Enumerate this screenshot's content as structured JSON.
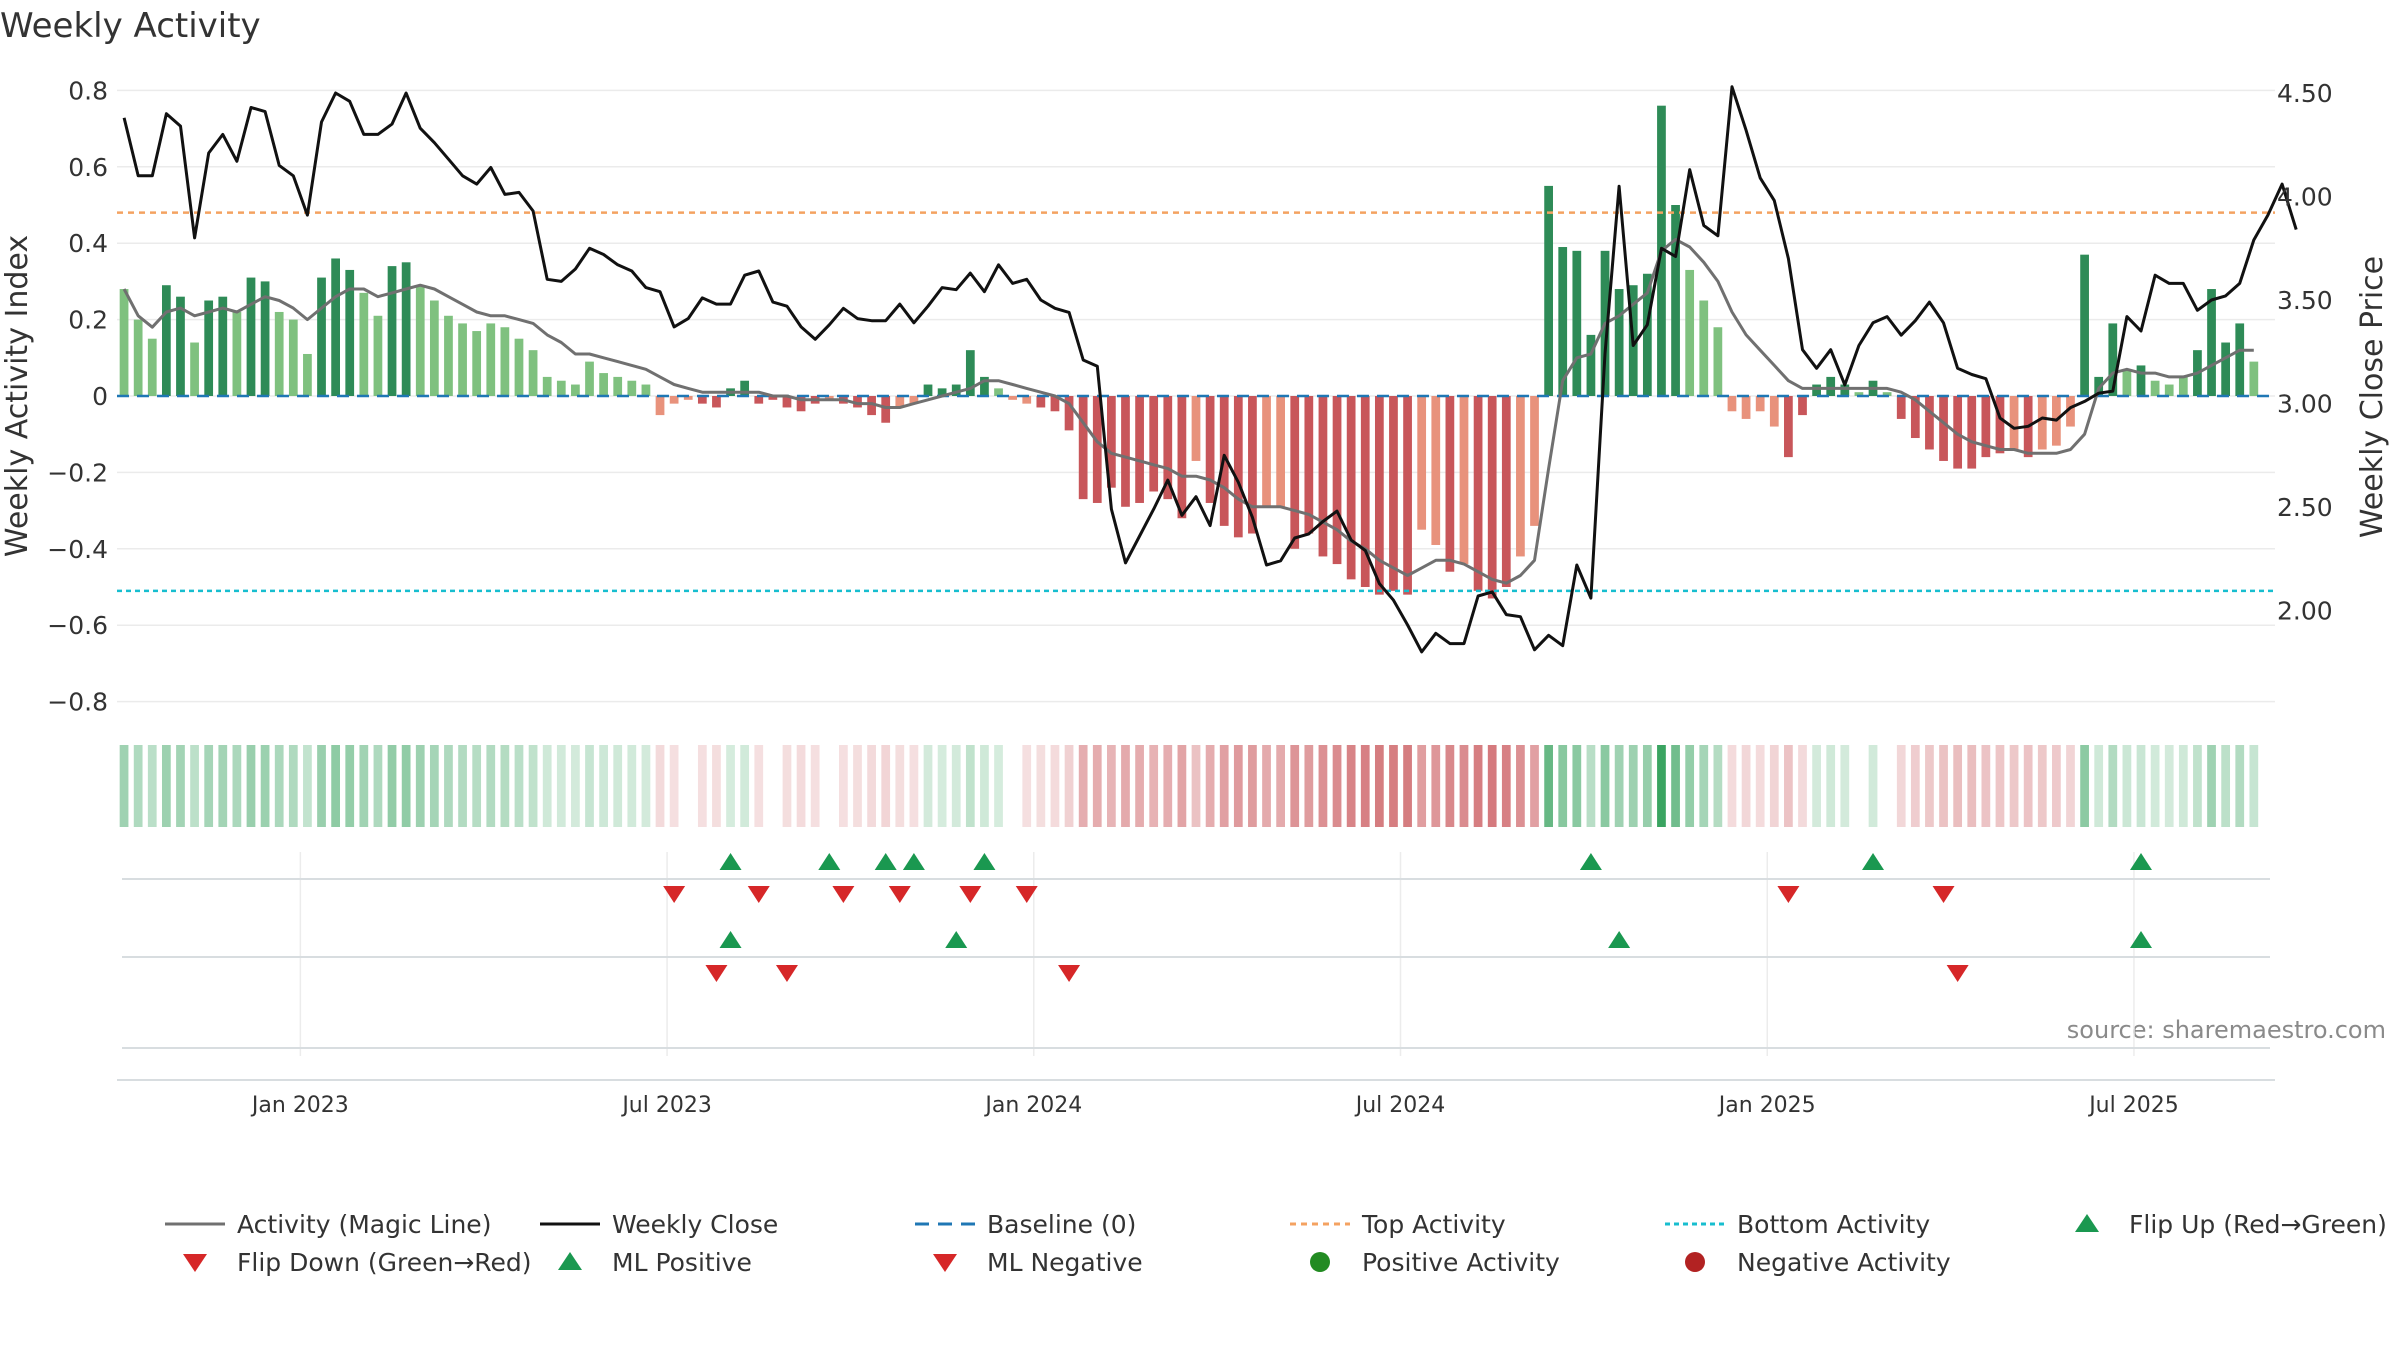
{
  "chart_data": {
    "type": "bar",
    "title": "Weekly Activity",
    "ylabel": "Weekly Activity Index",
    "y2label": "Weekly Close Price",
    "ylim": [
      -0.85,
      0.82
    ],
    "y2lim": [
      1.6,
      4.65
    ],
    "yticks": [
      0.8,
      0.6,
      0.4,
      0.2,
      0,
      -0.2,
      -0.4,
      -0.6,
      -0.8
    ],
    "ytick_labels": [
      "0.8",
      "0.6",
      "0.4",
      "0.2",
      "0",
      "−0.2",
      "−0.4",
      "−0.6",
      "−0.8"
    ],
    "y2ticks": [
      4.5,
      4.0,
      3.5,
      3.0,
      2.5,
      2.0
    ],
    "y2tick_labels": [
      "4.50",
      "4.00",
      "3.50",
      "3.00",
      "2.50",
      "2.00"
    ],
    "x_start": "2022-10-03",
    "week_count": 153,
    "xticks": [
      {
        "label": "Jan 2023",
        "week": 13
      },
      {
        "label": "Jul 2023",
        "week": 39
      },
      {
        "label": "Jan 2024",
        "week": 65
      },
      {
        "label": "Jul 2024",
        "week": 91
      },
      {
        "label": "Jan 2025",
        "week": 117
      },
      {
        "label": "Jul 2025",
        "week": 143
      }
    ],
    "activity": [
      0.28,
      0.2,
      0.15,
      0.29,
      0.26,
      0.14,
      0.25,
      0.26,
      0.22,
      0.31,
      0.3,
      0.22,
      0.2,
      0.11,
      0.31,
      0.36,
      0.33,
      0.27,
      0.21,
      0.34,
      0.35,
      0.29,
      0.25,
      0.21,
      0.19,
      0.17,
      0.19,
      0.18,
      0.15,
      0.12,
      0.05,
      0.04,
      0.03,
      0.09,
      0.06,
      0.05,
      0.04,
      0.03,
      -0.05,
      -0.02,
      -0.01,
      -0.02,
      -0.03,
      0.02,
      0.04,
      -0.02,
      -0.01,
      -0.03,
      -0.04,
      -0.02,
      -0.01,
      -0.02,
      -0.03,
      -0.05,
      -0.07,
      -0.03,
      -0.02,
      0.03,
      0.02,
      0.03,
      0.12,
      0.05,
      0.02,
      -0.01,
      -0.02,
      -0.03,
      -0.04,
      -0.09,
      -0.27,
      -0.28,
      -0.24,
      -0.29,
      -0.28,
      -0.25,
      -0.27,
      -0.32,
      -0.17,
      -0.28,
      -0.34,
      -0.37,
      -0.36,
      -0.29,
      -0.29,
      -0.4,
      -0.36,
      -0.42,
      -0.44,
      -0.48,
      -0.5,
      -0.52,
      -0.51,
      -0.52,
      -0.35,
      -0.39,
      -0.46,
      -0.44,
      -0.51,
      -0.53,
      -0.5,
      -0.42,
      -0.34,
      0.55,
      0.39,
      0.38,
      0.16,
      0.38,
      0.28,
      0.29,
      0.32,
      0.76,
      0.5,
      0.33,
      0.25,
      0.18,
      -0.04,
      -0.06,
      -0.04,
      -0.08,
      -0.16,
      -0.05,
      0.03,
      0.05,
      0.03,
      0.01,
      0.04,
      0.01,
      -0.06,
      -0.11,
      -0.14,
      -0.17,
      -0.19,
      -0.19,
      -0.16,
      -0.15,
      -0.14,
      -0.16,
      -0.14,
      -0.13,
      -0.08,
      0.37,
      0.05,
      0.19,
      0.07,
      0.08,
      0.04,
      0.03,
      0.05,
      0.12,
      0.28,
      0.14,
      0.19,
      0.09
    ],
    "magic_line": [
      0.28,
      0.21,
      0.18,
      0.22,
      0.23,
      0.21,
      0.22,
      0.23,
      0.22,
      0.24,
      0.26,
      0.25,
      0.23,
      0.2,
      0.23,
      0.26,
      0.28,
      0.28,
      0.26,
      0.27,
      0.28,
      0.29,
      0.28,
      0.26,
      0.24,
      0.22,
      0.21,
      0.21,
      0.2,
      0.19,
      0.16,
      0.14,
      0.11,
      0.11,
      0.1,
      0.09,
      0.08,
      0.07,
      0.05,
      0.03,
      0.02,
      0.01,
      0.01,
      0.01,
      0.01,
      0.01,
      0.0,
      0.0,
      -0.01,
      -0.01,
      -0.01,
      -0.01,
      -0.02,
      -0.02,
      -0.03,
      -0.03,
      -0.02,
      -0.01,
      0.0,
      0.01,
      0.02,
      0.04,
      0.04,
      0.03,
      0.02,
      0.01,
      0.0,
      -0.02,
      -0.07,
      -0.12,
      -0.15,
      -0.16,
      -0.17,
      -0.18,
      -0.19,
      -0.21,
      -0.21,
      -0.22,
      -0.24,
      -0.27,
      -0.29,
      -0.29,
      -0.29,
      -0.3,
      -0.31,
      -0.33,
      -0.35,
      -0.38,
      -0.4,
      -0.43,
      -0.45,
      -0.47,
      -0.45,
      -0.43,
      -0.43,
      -0.44,
      -0.46,
      -0.48,
      -0.49,
      -0.47,
      -0.43,
      -0.19,
      0.04,
      0.1,
      0.11,
      0.19,
      0.21,
      0.24,
      0.27,
      0.38,
      0.41,
      0.39,
      0.35,
      0.3,
      0.22,
      0.16,
      0.12,
      0.08,
      0.04,
      0.02,
      0.02,
      0.02,
      0.02,
      0.02,
      0.02,
      0.02,
      0.01,
      -0.01,
      -0.04,
      -0.07,
      -0.1,
      -0.12,
      -0.13,
      -0.14,
      -0.14,
      -0.15,
      -0.15,
      -0.15,
      -0.14,
      -0.1,
      0.02,
      0.06,
      0.07,
      0.06,
      0.06,
      0.05,
      0.05,
      0.06,
      0.08,
      0.1,
      0.12,
      0.12
    ],
    "weekly_close": [
      4.38,
      4.1,
      4.1,
      4.4,
      4.34,
      3.8,
      4.21,
      4.3,
      4.17,
      4.43,
      4.41,
      4.15,
      4.1,
      3.91,
      4.36,
      4.5,
      4.46,
      4.3,
      4.3,
      4.35,
      4.5,
      4.33,
      4.26,
      4.18,
      4.1,
      4.06,
      4.14,
      4.01,
      4.02,
      3.93,
      3.6,
      3.59,
      3.65,
      3.75,
      3.72,
      3.67,
      3.64,
      3.56,
      3.54,
      3.37,
      3.41,
      3.51,
      3.48,
      3.48,
      3.62,
      3.64,
      3.49,
      3.47,
      3.37,
      3.31,
      3.38,
      3.46,
      3.41,
      3.4,
      3.4,
      3.48,
      3.39,
      3.47,
      3.56,
      3.55,
      3.63,
      3.54,
      3.67,
      3.58,
      3.6,
      3.5,
      3.46,
      3.44,
      3.21,
      3.18,
      2.49,
      2.23,
      2.36,
      2.49,
      2.63,
      2.46,
      2.55,
      2.41,
      2.75,
      2.62,
      2.45,
      2.22,
      2.24,
      2.35,
      2.37,
      2.43,
      2.48,
      2.34,
      2.29,
      2.13,
      2.05,
      1.93,
      1.8,
      1.89,
      1.84,
      1.84,
      2.07,
      2.09,
      1.98,
      1.97,
      1.81,
      1.88,
      1.83,
      2.22,
      2.06,
      3.24,
      4.05,
      3.28,
      3.38,
      3.75,
      3.71,
      4.13,
      3.86,
      3.81,
      4.53,
      4.32,
      4.09,
      3.98,
      3.7,
      3.26,
      3.17,
      3.26,
      3.09,
      3.28,
      3.39,
      3.42,
      3.33,
      3.4,
      3.49,
      3.39,
      3.17,
      3.14,
      3.12,
      2.93,
      2.88,
      2.89,
      2.93,
      2.92,
      2.98,
      3.01,
      3.05,
      3.06,
      3.42,
      3.35,
      3.62,
      3.58,
      3.58,
      3.45,
      3.5,
      3.52,
      3.58,
      3.79,
      3.91,
      4.06,
      3.84
    ],
    "top_activity": 0.48,
    "bottom_activity": -0.51,
    "flip_up": [
      43,
      50,
      54,
      56,
      61,
      104,
      124,
      143
    ],
    "flip_down": [
      39,
      45,
      51,
      55,
      60,
      64,
      118,
      129
    ],
    "ml_positive": [
      43,
      59,
      106,
      143
    ],
    "ml_negative": [
      42,
      47,
      67,
      130
    ],
    "legend": [
      [
        "Activity (Magic Line)",
        "Weekly Close",
        "Baseline (0)",
        "Top Activity",
        "Bottom Activity",
        "Flip Up (Red→Green)"
      ],
      [
        "Flip Down (Green→Red)",
        "ML Positive",
        "ML Negative",
        "Positive Activity",
        "Negative Activity"
      ]
    ],
    "source_note": "source: sharemaestro.com",
    "colors": {
      "pos_dark": "#2e8b57",
      "pos_light": "#7fc17f",
      "neg_dark": "#c8565a",
      "neg_light": "#e8927c",
      "magic_line": "#707070",
      "close": "#111111",
      "baseline": "#1f77b4",
      "top": "#f4a261",
      "bottom": "#17becf",
      "marker_up": "#1a9850",
      "marker_down": "#d62728",
      "pos_dot": "#228b22",
      "neg_dot": "#b22222"
    }
  }
}
